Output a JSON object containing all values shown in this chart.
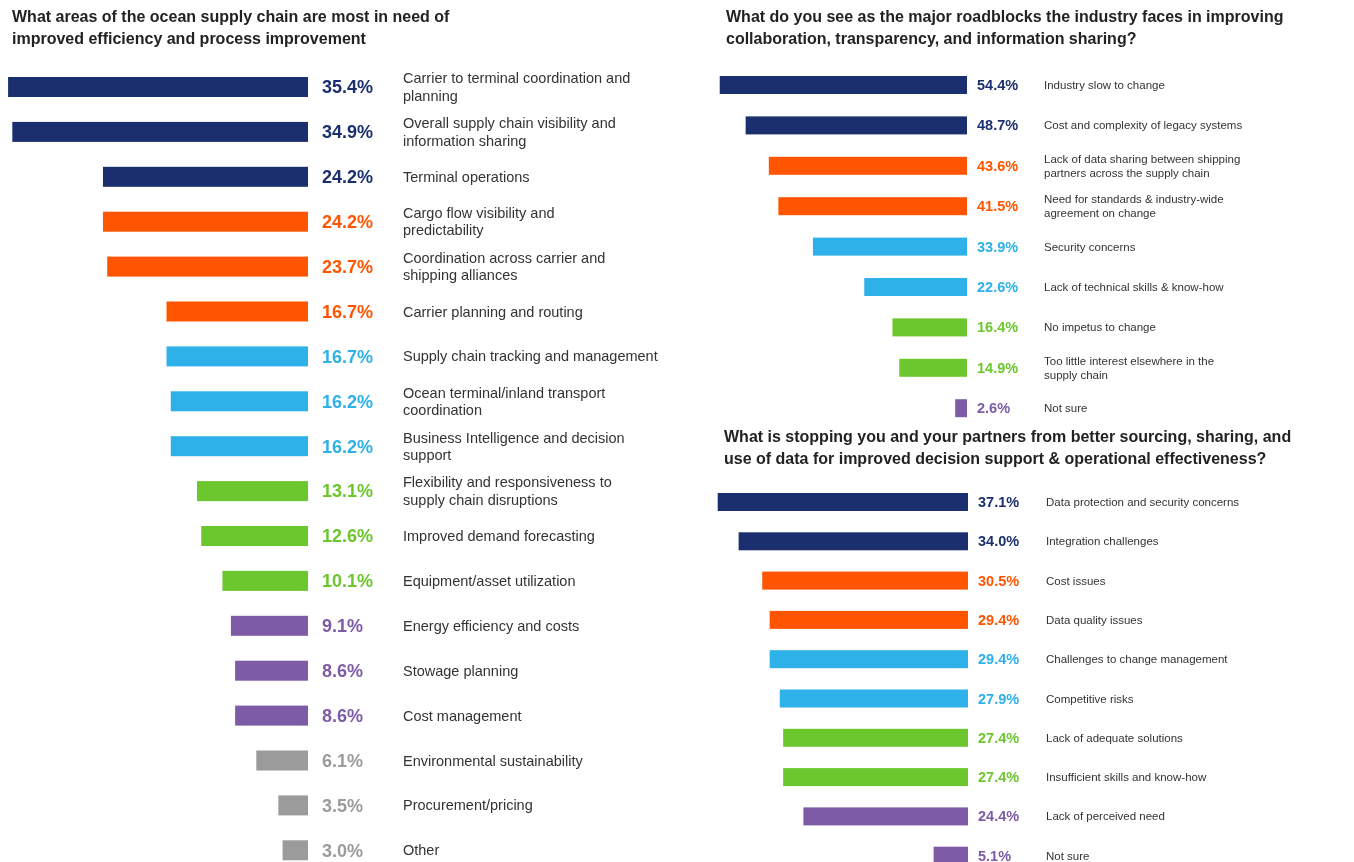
{
  "chart_data": [
    {
      "type": "bar",
      "orientation": "horizontal",
      "title": "What areas of the ocean supply chain are most in need of improved efficiency and process improvement",
      "categories": [
        "Carrier to terminal coordination and planning",
        "Overall supply chain visibility and information sharing",
        "Terminal operations",
        "Cargo flow visibility and predictability",
        "Coordination across carrier and shipping alliances",
        "Carrier planning and routing",
        "Supply chain tracking and management",
        "Ocean terminal/inland transport coordination",
        "Business Intelligence and decision support",
        "Flexibility and responsiveness to supply chain disruptions",
        "Improved demand forecasting",
        "Equipment/asset utilization",
        "Energy efficiency and costs",
        "Stowage planning",
        "Cost management",
        "Environmental sustainability",
        "Procurement/pricing",
        "Other"
      ],
      "values": [
        35.4,
        34.9,
        24.2,
        24.2,
        23.7,
        16.7,
        16.7,
        16.2,
        16.2,
        13.1,
        12.6,
        10.1,
        9.1,
        8.6,
        8.6,
        6.1,
        3.5,
        3.0
      ],
      "value_labels": [
        "35.4%",
        "34.9%",
        "24.2%",
        "24.2%",
        "23.7%",
        "16.7%",
        "16.7%",
        "16.2%",
        "16.2%",
        "13.1%",
        "12.6%",
        "10.1%",
        "9.1%",
        "8.6%",
        "8.6%",
        "6.1%",
        "3.5%",
        "3.0%"
      ],
      "colors": [
        "#1b2f6e",
        "#1b2f6e",
        "#1b2f6e",
        "#ff5500",
        "#ff5500",
        "#ff5500",
        "#2eb0e8",
        "#2eb0e8",
        "#2eb0e8",
        "#6cc62e",
        "#6cc62e",
        "#6cc62e",
        "#7d5ba6",
        "#7d5ba6",
        "#7d5ba6",
        "#9b9b9b",
        "#9b9b9b",
        "#9b9b9b"
      ],
      "xlim": [
        36,
        0
      ],
      "tick_labels": false
    },
    {
      "type": "bar",
      "orientation": "horizontal",
      "title": "What do you see as the major roadblocks the industry faces in improving collaboration, transparency, and information sharing?",
      "categories": [
        "Industry slow to change",
        "Cost and complexity of legacy systems",
        "Lack of data sharing between shipping partners across the supply chain",
        "Need for standards & industry-wide agreement on change",
        "Security concerns",
        "Lack of technical skills & know-how",
        "No impetus to change",
        "Too little interest elsewhere in the supply chain",
        "Not sure"
      ],
      "values": [
        54.4,
        48.7,
        43.6,
        41.5,
        33.9,
        22.6,
        16.4,
        14.9,
        2.6
      ],
      "value_labels": [
        "54.4%",
        "48.7%",
        "43.6%",
        "41.5%",
        "33.9%",
        "22.6%",
        "16.4%",
        "14.9%",
        "2.6%"
      ],
      "colors": [
        "#1b2f6e",
        "#1b2f6e",
        "#ff5500",
        "#ff5500",
        "#2eb0e8",
        "#2eb0e8",
        "#6cc62e",
        "#6cc62e",
        "#7d5ba6"
      ],
      "xlim": [
        55,
        0
      ],
      "tick_labels": false
    },
    {
      "type": "bar",
      "orientation": "horizontal",
      "title": "What is stopping you and your partners from better sourcing, sharing, and use of data for improved decision support & operational effectiveness?",
      "categories": [
        "Data protection and security concerns",
        "Integration challenges",
        "Cost issues",
        "Data quality issues",
        "Challenges to change management",
        "Competitive risks",
        "Lack of adequate solutions",
        "Insufficient skills and know-how",
        "Lack of perceived need",
        "Not sure"
      ],
      "values": [
        37.1,
        34.0,
        30.5,
        29.4,
        29.4,
        27.9,
        27.4,
        27.4,
        24.4,
        5.1
      ],
      "value_labels": [
        "37.1%",
        "34.0%",
        "30.5%",
        "29.4%",
        "29.4%",
        "27.9%",
        "27.4%",
        "27.4%",
        "24.4%",
        "5.1%"
      ],
      "colors": [
        "#1b2f6e",
        "#1b2f6e",
        "#ff5500",
        "#ff5500",
        "#2eb0e8",
        "#2eb0e8",
        "#6cc62e",
        "#6cc62e",
        "#7d5ba6",
        "#7d5ba6"
      ],
      "xlim": [
        37.5,
        0
      ],
      "tick_labels": false
    }
  ]
}
